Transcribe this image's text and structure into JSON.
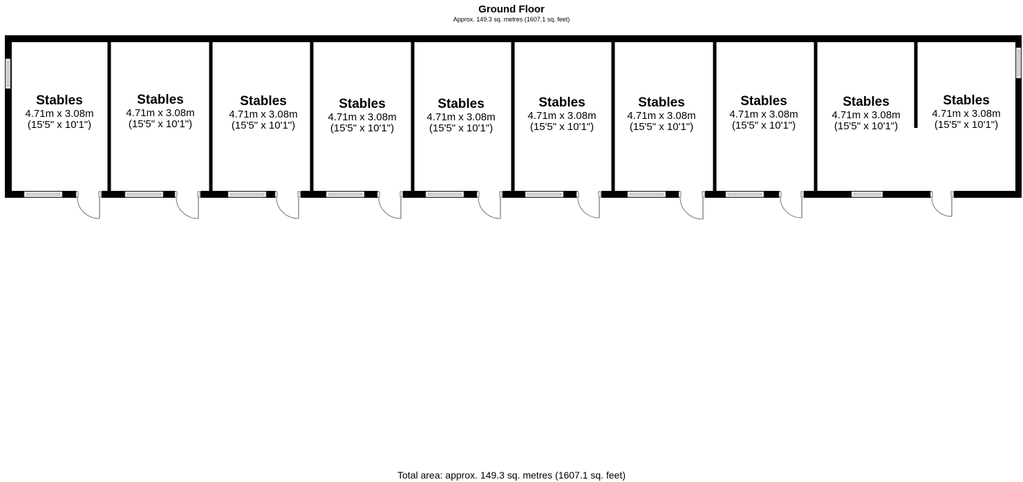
{
  "header": {
    "title": "Ground Floor",
    "subtitle": "Approx. 149.3 sq. metres (1607.1 sq. feet)"
  },
  "rooms": [
    {
      "name": "Stables",
      "metric": "4.71m x 3.08m",
      "imperial": "(15'5\" x 10'1\")"
    },
    {
      "name": "Stables",
      "metric": "4.71m x 3.08m",
      "imperial": "(15'5\" x 10'1\")"
    },
    {
      "name": "Stables",
      "metric": "4.71m x 3.08m",
      "imperial": "(15'5\" x 10'1\")"
    },
    {
      "name": "Stables",
      "metric": "4.71m x 3.08m",
      "imperial": "(15'5\" x 10'1\")"
    },
    {
      "name": "Stables",
      "metric": "4.71m x 3.08m",
      "imperial": "(15'5\" x 10'1\")"
    },
    {
      "name": "Stables",
      "metric": "4.71m x 3.08m",
      "imperial": "(15'5\" x 10'1\")"
    },
    {
      "name": "Stables",
      "metric": "4.71m x 3.08m",
      "imperial": "(15'5\" x 10'1\")"
    },
    {
      "name": "Stables",
      "metric": "4.71m x 3.08m",
      "imperial": "(15'5\" x 10'1\")"
    },
    {
      "name": "Stables",
      "metric": "4.71m x 3.08m",
      "imperial": "(15'5\" x 10'1\")"
    },
    {
      "name": "Stables",
      "metric": "4.71m x 3.08m",
      "imperial": "(15'5\" x 10'1\")"
    }
  ],
  "footer": {
    "total_area": "Total area: approx. 149.3 sq. metres (1607.1 sq. feet)"
  }
}
